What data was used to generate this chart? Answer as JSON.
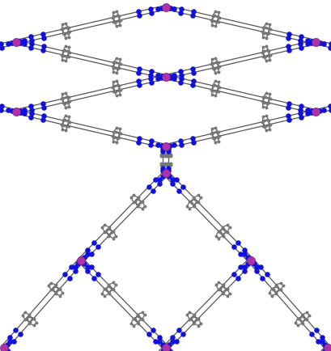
{
  "background_color": "#ffffff",
  "metal_color": "#aa33aa",
  "nitrogen_color": "#1111dd",
  "carbon_color": "#777777",
  "bond_color": "#555555",
  "metal_size": 55,
  "nitrogen_size": 22,
  "carbon_size": 8,
  "bond_lw": 0.9,
  "ring_lw": 0.8,
  "fig_width": 4.1,
  "fig_height": 4.35,
  "dpi": 100
}
